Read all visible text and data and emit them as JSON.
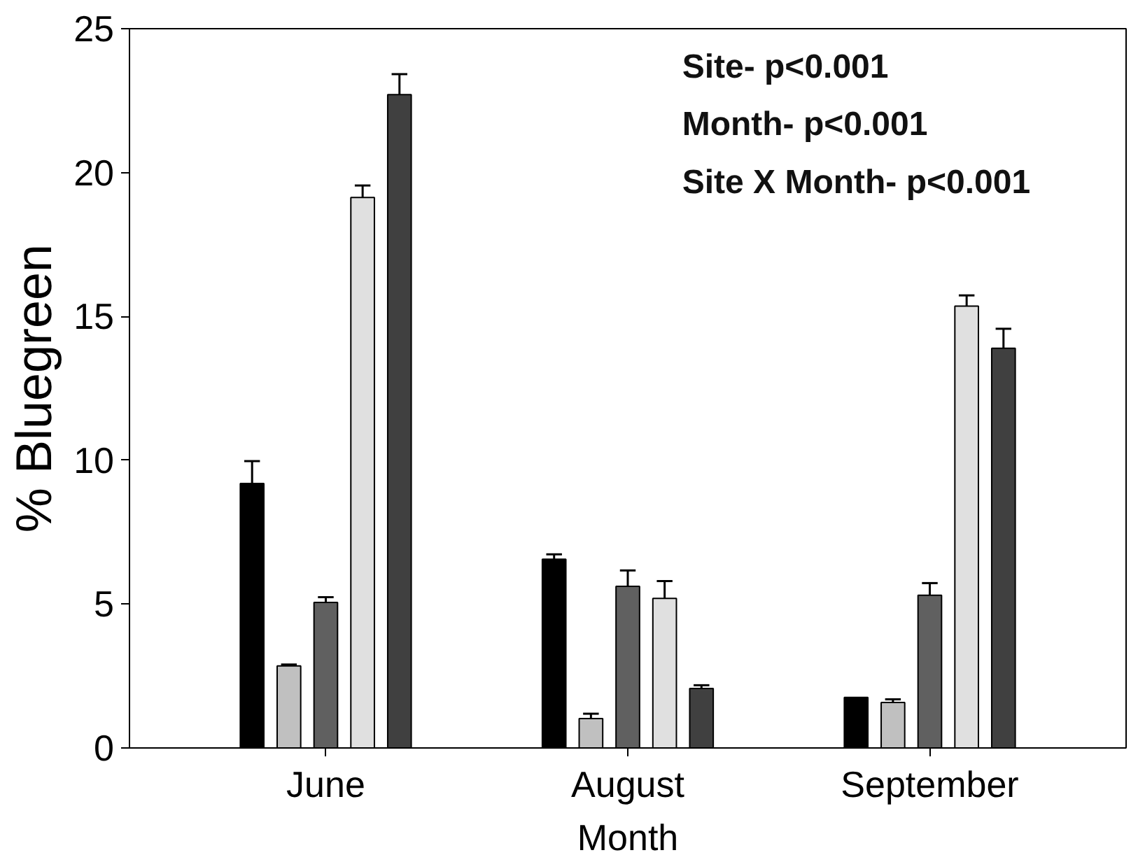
{
  "chart_data": {
    "type": "bar",
    "xlabel": "Month",
    "ylabel": "% Bluegreen",
    "categories": [
      "June",
      "August",
      "September"
    ],
    "series": [
      {
        "color": "#000000",
        "values": [
          9.19,
          6.56,
          1.76
        ],
        "errors": [
          [
            9.19,
            9.97
          ],
          [
            6.56,
            6.73
          ],
          null
        ]
      },
      {
        "color": "#c0c0c0",
        "values": [
          2.85,
          1.02,
          1.58
        ],
        "errors": [
          [
            2.85,
            2.9
          ],
          [
            1.02,
            1.19
          ],
          [
            1.58,
            1.69
          ]
        ]
      },
      {
        "color": "#606060",
        "values": [
          5.06,
          5.62,
          5.31
        ],
        "errors": [
          [
            5.06,
            5.24
          ],
          [
            5.62,
            6.17
          ],
          [
            5.31,
            5.73
          ]
        ]
      },
      {
        "color": "#e0e0e0",
        "values": [
          19.13,
          5.2,
          15.36
        ],
        "errors": [
          [
            19.13,
            19.55
          ],
          [
            5.2,
            5.8
          ],
          [
            15.36,
            15.73
          ]
        ]
      },
      {
        "color": "#404040",
        "values": [
          22.71,
          2.07,
          13.89
        ],
        "errors": [
          [
            22.71,
            23.42
          ],
          [
            2.07,
            2.18
          ],
          [
            13.89,
            14.57
          ]
        ]
      }
    ],
    "ylim": [
      0,
      25
    ],
    "yticks": [
      0,
      5,
      10,
      15,
      20,
      25
    ],
    "grid": false,
    "annotations": [
      "Site- p<0.001",
      "Month- p<0.001",
      "Site X Month- p<0.001"
    ]
  }
}
